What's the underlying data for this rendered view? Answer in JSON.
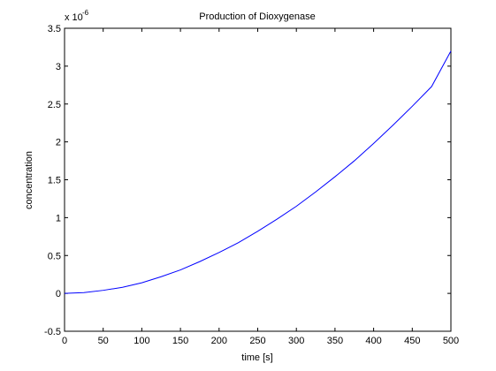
{
  "chart_data": {
    "type": "line",
    "title": "Production of Dioxygenase",
    "xlabel": "time [s]",
    "ylabel": "concentration",
    "y_multiplier_base": "x 10",
    "y_multiplier_exponent": "-6",
    "xlim": [
      0,
      500
    ],
    "ylim": [
      -0.5,
      3.5
    ],
    "xticks": [
      "0",
      "50",
      "100",
      "150",
      "200",
      "250",
      "300",
      "350",
      "400",
      "450",
      "500"
    ],
    "yticks": [
      "-0.5",
      "0",
      "0.5",
      "1",
      "1.5",
      "2",
      "2.5",
      "3",
      "3.5"
    ],
    "grid": false,
    "series": [
      {
        "color": "#0000ff",
        "x": [
          0,
          25,
          50,
          75,
          100,
          125,
          150,
          175,
          200,
          225,
          250,
          275,
          300,
          325,
          350,
          375,
          400,
          425,
          450,
          475,
          500
        ],
        "y": [
          0.0,
          0.01,
          0.04,
          0.08,
          0.14,
          0.22,
          0.31,
          0.42,
          0.54,
          0.67,
          0.82,
          0.98,
          1.15,
          1.34,
          1.54,
          1.75,
          1.98,
          2.22,
          2.47,
          2.73,
          3.2
        ]
      }
    ]
  }
}
